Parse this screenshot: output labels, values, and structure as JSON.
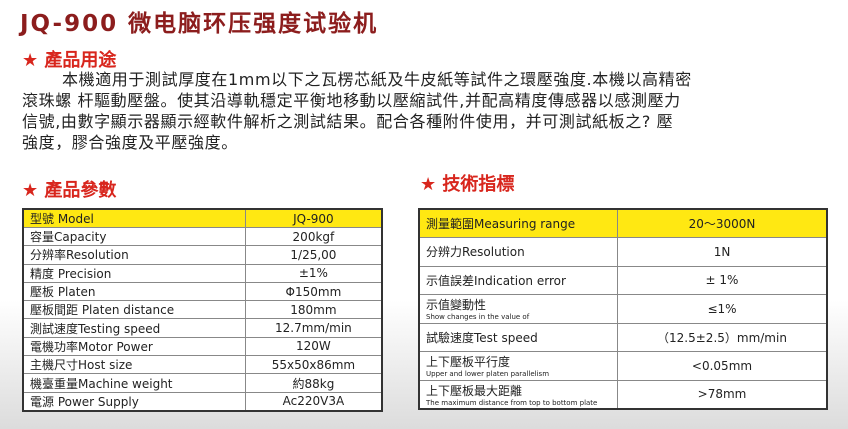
{
  "header": {
    "title": "JQ-900 微电脑环压强度试验机"
  },
  "usage": {
    "heading": "★ 產品用途",
    "lines": [
      "本機適用于測試厚度在1mm以下之瓦楞芯紙及牛皮紙等試件之環壓強度.本機以高精密",
      "滾珠螺 杆驅動壓盤。使其沿導軌穩定平衡地移動以壓縮試件,并配高精度傳感器以感測壓力",
      "信號,由數字顯示器顯示經軟件解析之測試結果。配合各種附件使用，并可測試紙板之? 壓",
      "強度，膠合強度及平壓強度。"
    ]
  },
  "params": {
    "heading": "★ 產品參數",
    "rows": [
      [
        "型號 Model",
        "JQ-900"
      ],
      [
        "容量Capacity",
        "200kgf"
      ],
      [
        "分辨率Resolution",
        "1/25,00"
      ],
      [
        "精度 Precision",
        "±1%"
      ],
      [
        "壓板 Platen",
        "Φ150mm"
      ],
      [
        "壓板間距 Platen distance",
        "180mm"
      ],
      [
        "測試速度Testing speed",
        "12.7mm/min"
      ],
      [
        "電機功率Motor Power",
        "120W"
      ],
      [
        "主機尺寸Host size",
        "55x50x86mm"
      ],
      [
        "機臺重量Machine weight",
        "約88kg"
      ],
      [
        "電源 Power Supply",
        "Ac220V3A"
      ]
    ]
  },
  "specs": {
    "heading": "★ 技術指標",
    "rows": [
      {
        "label": "測量範圍Measuring range",
        "value": "20～3000N"
      },
      {
        "label": "分辨力Resolution",
        "value": "1N"
      },
      {
        "label": "示值誤差Indication error",
        "value": "± 1%"
      },
      {
        "label": "示值變動性",
        "sub": "Show changes in the value of",
        "value": "≤1%"
      },
      {
        "label": "試驗速度Test speed",
        "value": "（12.5±2.5）mm/min"
      },
      {
        "label": "上下壓板平行度",
        "sub": "Upper and lower platen parallelism",
        "value": "<0.05mm"
      },
      {
        "label": "上下壓板最大距離",
        "sub": "The maximum distance from top to bottom plate",
        "value": ">78mm"
      }
    ]
  }
}
